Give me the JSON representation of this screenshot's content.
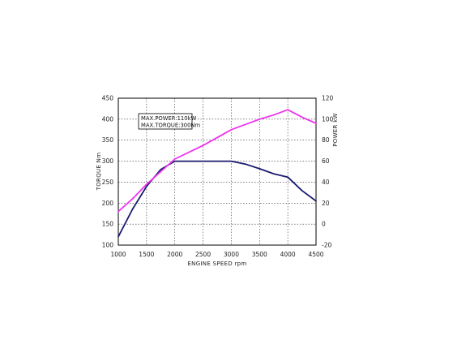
{
  "chart_data": {
    "type": "line",
    "annotation": [
      "MAX.POWER:110kW",
      "MAX.TORQUE:300Nm"
    ],
    "xlabel": "ENGINE SPEED rpm",
    "ylabel_left": "TORQUE Nm",
    "ylabel_right": "POWER kW",
    "xlim": [
      1000,
      4500
    ],
    "ylim_left": [
      100,
      450
    ],
    "ylim_right": [
      -20,
      120
    ],
    "x_ticks": [
      "1000",
      "1500",
      "2000",
      "2500",
      "3000",
      "3500",
      "4000",
      "4500"
    ],
    "left_ticks": [
      "100",
      "150",
      "200",
      "250",
      "300",
      "350",
      "400",
      "450"
    ],
    "right_ticks": [
      "-20",
      "0",
      "20",
      "40",
      "60",
      "80",
      "100",
      "120"
    ],
    "grid": true,
    "series": [
      {
        "axis": "left",
        "color": "#1a1a6e",
        "x": [
          1000,
          1250,
          1500,
          1750,
          2000,
          2500,
          3000,
          3250,
          3500,
          3750,
          4000,
          4250,
          4500
        ],
        "y": [
          120,
          185,
          240,
          280,
          300,
          300,
          300,
          293,
          282,
          270,
          262,
          230,
          205
        ]
      },
      {
        "axis": "right",
        "color": "#ee33ee",
        "x": [
          1000,
          1250,
          1500,
          1750,
          2000,
          2500,
          3000,
          3250,
          3500,
          3750,
          4000,
          4250,
          4500
        ],
        "y": [
          12,
          24,
          38,
          50,
          62,
          75,
          90,
          95,
          100,
          104,
          109,
          102,
          96
        ]
      }
    ]
  }
}
